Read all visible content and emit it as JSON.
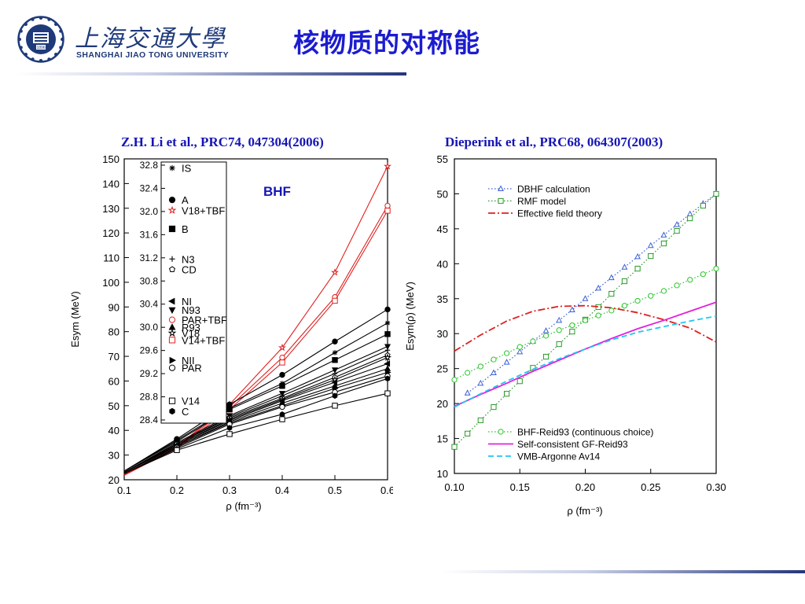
{
  "header": {
    "school_cn": "上海交通大學",
    "school_en": "SHANGHAI JIAO TONG UNIVERSITY",
    "logo_year": "1896",
    "slide_title": "核物质的对称能"
  },
  "colors": {
    "title": "#1c1cd0",
    "citation": "#1515b5",
    "brand": "#1f3a7a"
  },
  "left_panel": {
    "citation": "Z.H. Li et al., PRC74, 047304(2006)"
  },
  "right_panel": {
    "citation": "Dieperink et al., PRC68, 064307(2003)"
  },
  "chart_data": [
    {
      "type": "line",
      "annotation": "BHF",
      "xlabel": "ρ (fm⁻³)",
      "ylabel": "Esym (MeV)",
      "xlim": [
        0.1,
        0.6
      ],
      "ylim": [
        20,
        150
      ],
      "xticks": [
        "0.1",
        "0.2",
        "0.3",
        "0.4",
        "0.5",
        "0.6"
      ],
      "yticks": [
        "20",
        "30",
        "40",
        "50",
        "60",
        "70",
        "80",
        "90",
        "100",
        "110",
        "120",
        "130",
        "140",
        "150"
      ],
      "x": [
        0.1,
        0.2,
        0.3,
        0.4,
        0.5,
        0.6
      ],
      "series": [
        {
          "name": "V18+TBF",
          "color": "#e02020",
          "marker": "star-open",
          "values": [
            22.2,
            33.5,
            50.5,
            73.5,
            104.0,
            147.0
          ]
        },
        {
          "name": "PAR+TBF",
          "color": "#e02020",
          "marker": "circle-open",
          "values": [
            22.0,
            33.2,
            49.5,
            69.5,
            94.0,
            131.0
          ]
        },
        {
          "name": "V14+TBF",
          "color": "#e02020",
          "marker": "square-open",
          "values": [
            21.8,
            32.8,
            48.5,
            67.5,
            92.5,
            129.0
          ]
        },
        {
          "name": "A",
          "color": "#000000",
          "marker": "circle-filled",
          "values": [
            23.5,
            36.5,
            50.5,
            62.5,
            76.0,
            89.0
          ]
        },
        {
          "name": "IS",
          "color": "#000000",
          "marker": "asterisk",
          "values": [
            23.5,
            36.0,
            49.0,
            59.0,
            71.5,
            83.5
          ]
        },
        {
          "name": "B",
          "color": "#000000",
          "marker": "square-filled",
          "values": [
            23.5,
            35.5,
            48.5,
            58.0,
            68.5,
            79.0
          ]
        },
        {
          "name": "N93",
          "color": "#000000",
          "marker": "triangle-down",
          "values": [
            23.0,
            35.0,
            46.0,
            55.0,
            64.5,
            74.0
          ]
        },
        {
          "name": "N3",
          "color": "#000000",
          "marker": "plus",
          "values": [
            23.0,
            34.5,
            45.5,
            54.0,
            63.0,
            72.5
          ]
        },
        {
          "name": "CD",
          "color": "#000000",
          "marker": "pentagon-open",
          "values": [
            23.0,
            34.5,
            45.0,
            53.0,
            61.5,
            70.5
          ]
        },
        {
          "name": "V18",
          "color": "#000000",
          "marker": "star-open",
          "values": [
            23.0,
            34.0,
            44.5,
            52.5,
            60.5,
            69.5
          ]
        },
        {
          "name": "NI",
          "color": "#000000",
          "marker": "triangle-left",
          "values": [
            23.0,
            34.0,
            44.0,
            52.0,
            59.5,
            67.0
          ]
        },
        {
          "name": "R93",
          "color": "#000000",
          "marker": "triangle-up",
          "values": [
            23.0,
            33.5,
            43.5,
            51.0,
            58.0,
            65.0
          ]
        },
        {
          "name": "NII",
          "color": "#000000",
          "marker": "triangle-right",
          "values": [
            23.0,
            33.5,
            43.0,
            50.0,
            57.0,
            63.5
          ]
        },
        {
          "name": "PAR",
          "color": "#000000",
          "marker": "circle-open",
          "values": [
            22.5,
            33.0,
            42.5,
            49.5,
            55.5,
            62.0
          ]
        },
        {
          "name": "C",
          "color": "#000000",
          "marker": "hexagon-filled",
          "values": [
            22.5,
            32.5,
            41.0,
            46.5,
            54.0,
            61.0
          ]
        },
        {
          "name": "V14",
          "color": "#000000",
          "marker": "square-open",
          "values": [
            22.5,
            32.0,
            38.5,
            44.5,
            50.0,
            55.0
          ]
        }
      ],
      "inset_legend": {
        "ylim": [
          28.4,
          32.8
        ],
        "yticks": [
          "32.8",
          "32.4",
          "32.0",
          "31.6",
          "31.2",
          "30.8",
          "30.4",
          "30.0",
          "29.6",
          "29.2",
          "28.8",
          "28.4"
        ],
        "entries": [
          {
            "label": "IS",
            "marker": "asterisk",
            "color": "#000000",
            "value": 32.75
          },
          {
            "label": "A",
            "marker": "circle-filled",
            "color": "#000000",
            "value": 32.2
          },
          {
            "label": "V18+TBF",
            "marker": "star-open",
            "color": "#e02020",
            "value": 32.02
          },
          {
            "label": "B",
            "marker": "square-filled",
            "color": "#000000",
            "value": 31.7
          },
          {
            "label": "N3",
            "marker": "plus",
            "color": "#000000",
            "value": 31.18
          },
          {
            "label": "CD",
            "marker": "pentagon-open",
            "color": "#000000",
            "value": 31.0
          },
          {
            "label": "NI",
            "marker": "triangle-left",
            "color": "#000000",
            "value": 30.45
          },
          {
            "label": "N93",
            "marker": "triangle-down",
            "color": "#000000",
            "value": 30.3
          },
          {
            "label": "PAR+TBF",
            "marker": "circle-open",
            "color": "#e02020",
            "value": 30.13
          },
          {
            "label": "R93",
            "marker": "triangle-up",
            "color": "#000000",
            "value": 30.0
          },
          {
            "label": "V18",
            "marker": "star-open",
            "color": "#000000",
            "value": 29.9
          },
          {
            "label": "V14+TBF",
            "marker": "square-open",
            "color": "#e02020",
            "value": 29.78
          },
          {
            "label": "NII",
            "marker": "triangle-right",
            "color": "#000000",
            "value": 29.43
          },
          {
            "label": "PAR",
            "marker": "circle-open",
            "color": "#000000",
            "value": 29.3
          },
          {
            "label": "V14",
            "marker": "square-open",
            "color": "#000000",
            "value": 28.73
          },
          {
            "label": "C",
            "marker": "hexagon-filled",
            "color": "#000000",
            "value": 28.55
          }
        ]
      }
    },
    {
      "type": "line",
      "xlabel": "ρ (fm⁻³)",
      "ylabel": "Esym(ρ) (MeV)",
      "xlim": [
        0.1,
        0.3
      ],
      "ylim": [
        10,
        55
      ],
      "xticks": [
        "0.10",
        "0.15",
        "0.20",
        "0.25",
        "0.30"
      ],
      "yticks": [
        "10",
        "15",
        "20",
        "25",
        "30",
        "35",
        "40",
        "45",
        "50",
        "55"
      ],
      "series": [
        {
          "name": "DBHF calculation",
          "color": "#3b5fd6",
          "style": "dotted",
          "marker": "triangle-open",
          "x": [
            0.11,
            0.12,
            0.13,
            0.14,
            0.15,
            0.16,
            0.17,
            0.18,
            0.19,
            0.2,
            0.21,
            0.22,
            0.23,
            0.24,
            0.25,
            0.26,
            0.27,
            0.28,
            0.29,
            0.3
          ],
          "values": [
            21.5,
            22.9,
            24.4,
            25.9,
            27.4,
            28.9,
            30.4,
            31.9,
            33.4,
            35.0,
            36.5,
            38.0,
            39.5,
            41.0,
            42.6,
            44.1,
            45.6,
            47.1,
            48.6,
            50.0
          ]
        },
        {
          "name": "RMF model",
          "color": "#2a9a2a",
          "style": "dotted",
          "marker": "square-open",
          "x": [
            0.1,
            0.11,
            0.12,
            0.13,
            0.14,
            0.15,
            0.16,
            0.17,
            0.18,
            0.19,
            0.2,
            0.21,
            0.22,
            0.23,
            0.24,
            0.25,
            0.26,
            0.27,
            0.28,
            0.29,
            0.3
          ],
          "values": [
            13.8,
            15.7,
            17.6,
            19.5,
            21.4,
            23.2,
            25.1,
            26.7,
            28.5,
            30.3,
            32.0,
            33.8,
            35.7,
            37.5,
            39.3,
            41.1,
            42.9,
            44.7,
            46.5,
            48.3,
            50.0
          ]
        },
        {
          "name": "Effective field theory",
          "color": "#e02020",
          "style": "dashdot",
          "marker": "none",
          "x": [
            0.1,
            0.12,
            0.14,
            0.16,
            0.18,
            0.2,
            0.22,
            0.24,
            0.26,
            0.28,
            0.3
          ],
          "values": [
            27.5,
            29.8,
            31.8,
            33.2,
            33.9,
            34.0,
            33.7,
            33.0,
            32.0,
            30.8,
            28.8
          ]
        },
        {
          "name": "BHF-Reid93 (continuous choice)",
          "color": "#2bc42b",
          "style": "dotted",
          "marker": "circle-open",
          "x": [
            0.1,
            0.11,
            0.12,
            0.13,
            0.14,
            0.15,
            0.16,
            0.17,
            0.18,
            0.19,
            0.2,
            0.21,
            0.22,
            0.23,
            0.24,
            0.25,
            0.26,
            0.27,
            0.28,
            0.29,
            0.3
          ],
          "values": [
            23.4,
            24.4,
            25.3,
            26.3,
            27.2,
            28.1,
            28.9,
            29.7,
            30.5,
            31.2,
            31.9,
            32.6,
            33.3,
            34.0,
            34.7,
            35.4,
            36.1,
            36.9,
            37.7,
            38.5,
            39.3
          ]
        },
        {
          "name": "Self-consistent GF-Reid93",
          "color": "#e020e0",
          "style": "solid",
          "marker": "none",
          "x": [
            0.1,
            0.12,
            0.14,
            0.16,
            0.18,
            0.2,
            0.22,
            0.24,
            0.26,
            0.28,
            0.3
          ],
          "values": [
            19.6,
            21.3,
            22.9,
            24.6,
            26.2,
            27.8,
            29.3,
            30.7,
            31.9,
            33.2,
            34.5
          ]
        },
        {
          "name": "VMB-Argonne Av14",
          "color": "#1ec8f0",
          "style": "dashed",
          "marker": "none",
          "x": [
            0.1,
            0.12,
            0.14,
            0.16,
            0.18,
            0.2,
            0.22,
            0.24,
            0.26,
            0.28,
            0.3
          ],
          "values": [
            19.5,
            21.4,
            23.2,
            24.9,
            26.4,
            27.8,
            29.1,
            30.2,
            31.0,
            31.8,
            32.5
          ]
        }
      ],
      "legend_top": [
        "DBHF calculation",
        "RMF model",
        "Effective field theory"
      ],
      "legend_bottom": [
        "BHF-Reid93 (continuous choice)",
        "Self-consistent GF-Reid93",
        "VMB-Argonne Av14"
      ]
    }
  ]
}
